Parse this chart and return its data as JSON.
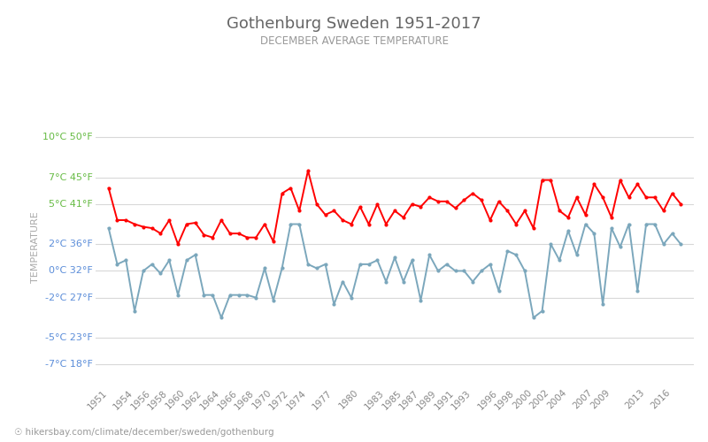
{
  "title": "Gothenburg Sweden 1951-2017",
  "subtitle": "DECEMBER AVERAGE TEMPERATURE",
  "ylabel": "TEMPERATURE",
  "xlabel_url": "hikersbay.com/climate/december/sweden/gothenburg",
  "years": [
    1951,
    1952,
    1953,
    1954,
    1955,
    1956,
    1957,
    1958,
    1959,
    1960,
    1961,
    1962,
    1963,
    1964,
    1965,
    1966,
    1967,
    1968,
    1969,
    1970,
    1971,
    1972,
    1973,
    1974,
    1975,
    1976,
    1977,
    1978,
    1979,
    1980,
    1981,
    1982,
    1983,
    1984,
    1985,
    1986,
    1987,
    1988,
    1989,
    1990,
    1991,
    1992,
    1993,
    1994,
    1995,
    1996,
    1997,
    1998,
    1999,
    2000,
    2001,
    2002,
    2003,
    2004,
    2005,
    2006,
    2007,
    2008,
    2009,
    2010,
    2011,
    2012,
    2013,
    2014,
    2015,
    2016,
    2017
  ],
  "day_temps": [
    6.2,
    3.8,
    3.8,
    3.5,
    3.3,
    3.2,
    2.8,
    3.8,
    2.0,
    3.5,
    3.6,
    2.7,
    2.5,
    3.8,
    2.8,
    2.8,
    2.5,
    2.5,
    3.5,
    2.2,
    5.8,
    6.2,
    4.5,
    7.5,
    5.0,
    4.2,
    4.5,
    3.8,
    3.5,
    4.8,
    3.5,
    5.0,
    3.5,
    4.5,
    4.0,
    5.0,
    4.8,
    5.5,
    5.2,
    5.2,
    4.7,
    5.3,
    5.8,
    5.3,
    3.8,
    5.2,
    4.5,
    3.5,
    4.5,
    3.2,
    6.8,
    6.8,
    4.5,
    4.0,
    5.5,
    4.2,
    6.5,
    5.5,
    4.0,
    6.8,
    5.5,
    6.5,
    5.5,
    5.5,
    4.5,
    5.8,
    5.0
  ],
  "night_temps": [
    3.2,
    0.5,
    0.8,
    -3.0,
    0.0,
    0.5,
    -0.2,
    0.8,
    -1.8,
    0.8,
    1.2,
    -1.8,
    -1.8,
    -3.5,
    -1.8,
    -1.8,
    -1.8,
    -2.0,
    0.2,
    -2.2,
    0.2,
    3.5,
    3.5,
    0.5,
    0.2,
    0.5,
    -2.5,
    -0.8,
    -2.0,
    0.5,
    0.5,
    0.8,
    -0.8,
    1.0,
    -0.8,
    0.8,
    -2.2,
    1.2,
    0.0,
    0.5,
    0.0,
    0.0,
    -0.8,
    0.0,
    0.5,
    -1.5,
    1.5,
    1.2,
    0.0,
    -3.5,
    -3.0,
    2.0,
    0.8,
    3.0,
    1.2,
    3.5,
    2.8,
    -2.5,
    3.2,
    1.8,
    3.5,
    -1.5,
    3.5,
    3.5,
    2.0,
    2.8,
    2.0
  ],
  "day_color": "#ff0000",
  "night_color": "#7ba7bc",
  "title_color": "#666666",
  "subtitle_color": "#999999",
  "ylabel_color": "#aaaaaa",
  "grid_color": "#d8d8d8",
  "background_color": "#ffffff",
  "celsius_ticks": [
    -7,
    -5,
    -2,
    0,
    2,
    5,
    7,
    10
  ],
  "fahrenheit_ticks": [
    18,
    23,
    27,
    32,
    36,
    41,
    45,
    50
  ],
  "celsius_label_colors": {
    "-7": "#5b8dd9",
    "-5": "#5b8dd9",
    "-2": "#5b8dd9",
    "0": "#5b8dd9",
    "2": "#5b8dd9",
    "5": "#66bb44",
    "7": "#66bb44",
    "10": "#66bb44"
  },
  "ylim": [
    -8.5,
    12.0
  ],
  "xlim": [
    1949.5,
    2018.5
  ],
  "xtick_years": [
    1951,
    1954,
    1956,
    1958,
    1960,
    1962,
    1964,
    1966,
    1968,
    1970,
    1972,
    1974,
    1977,
    1980,
    1983,
    1985,
    1987,
    1989,
    1991,
    1993,
    1996,
    1998,
    2000,
    2002,
    2004,
    2007,
    2009,
    2013,
    2016
  ],
  "marker_size": 3.0,
  "line_width": 1.4
}
